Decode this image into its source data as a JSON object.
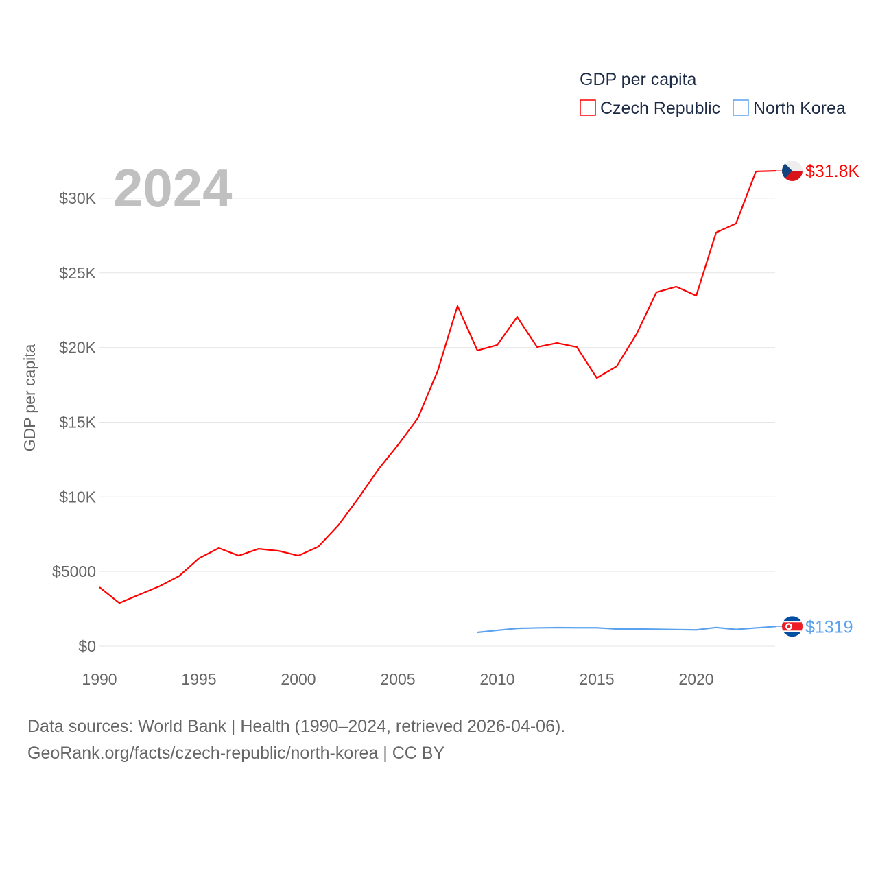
{
  "chart_data": {
    "type": "line",
    "title": "",
    "ylabel": "GDP per capita",
    "xlabel": "",
    "big_year": "2024",
    "legend": {
      "title": "GDP per capita",
      "placement": "top-right"
    },
    "xlim": [
      1990,
      2024
    ],
    "ylim": [
      0,
      31800
    ],
    "x_ticks": [
      1990,
      1995,
      2000,
      2005,
      2010,
      2015,
      2020
    ],
    "x_tick_labels": [
      "1990",
      "1995",
      "2000",
      "2005",
      "2010",
      "2015",
      "2020"
    ],
    "y_ticks": [
      0,
      5000,
      10000,
      15000,
      20000,
      25000,
      30000
    ],
    "y_tick_labels": [
      "$0",
      "$5000",
      "$10K",
      "$15K",
      "$20K",
      "$25K",
      "$30K"
    ],
    "grid": true,
    "series": [
      {
        "name": "Czech Republic",
        "color": "#ff0000",
        "end_label": "$31.8K",
        "flag": "czech-flag",
        "x": [
          1990,
          1991,
          1992,
          1993,
          1994,
          1995,
          1996,
          1997,
          1998,
          1999,
          2000,
          2001,
          2002,
          2003,
          2004,
          2005,
          2006,
          2007,
          2008,
          2009,
          2010,
          2011,
          2012,
          2013,
          2014,
          2015,
          2016,
          2017,
          2018,
          2019,
          2020,
          2021,
          2022,
          2023,
          2024
        ],
        "values": [
          3950,
          2890,
          3450,
          4000,
          4690,
          5880,
          6570,
          6060,
          6520,
          6380,
          6060,
          6660,
          8080,
          9880,
          11800,
          13460,
          15250,
          18420,
          22780,
          19800,
          20170,
          22050,
          20030,
          20300,
          20030,
          17960,
          18740,
          20900,
          23700,
          24070,
          23470,
          27700,
          28300,
          31790,
          31830
        ]
      },
      {
        "name": "North Korea",
        "color": "#5aa2ee",
        "end_label": "$1319",
        "flag": "north-korea-flag",
        "x": [
          2009,
          2010,
          2011,
          2012,
          2013,
          2014,
          2015,
          2016,
          2017,
          2018,
          2019,
          2020,
          2021,
          2022,
          2023,
          2024
        ],
        "values": [
          920,
          1060,
          1190,
          1220,
          1240,
          1230,
          1230,
          1150,
          1150,
          1130,
          1110,
          1090,
          1250,
          1120,
          1220,
          1319
        ]
      }
    ]
  },
  "footer": {
    "sources": "Data sources: World Bank | Health (1990–2024, retrieved 2026-04-06).",
    "url": "GeoRank.org/facts/czech-republic/north-korea | CC BY"
  }
}
